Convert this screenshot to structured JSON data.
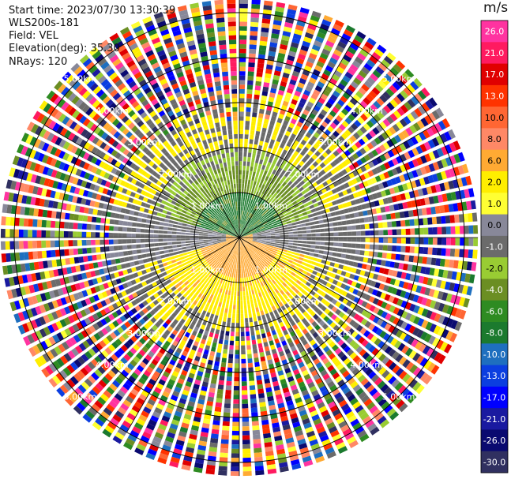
{
  "header": {
    "start_time": "Start time: 2023/07/30 13:30:39",
    "station": "WLS200s-181",
    "field": "Field: VEL",
    "elevation": "Elevation(deg): 35.30",
    "nrays": "NRays: 120"
  },
  "chart_data": {
    "type": "heatmap",
    "subtype": "ppi-polar",
    "field": "VEL",
    "units": "m/s",
    "n_rays": 120,
    "range_rings_km": [
      1,
      2,
      3,
      4,
      5
    ],
    "range_labels": [
      "1.00km",
      "2.00km",
      "3.00km",
      "4.00km",
      "5.00km"
    ],
    "max_range_km": 5.3,
    "colorbar": {
      "title": "m/s",
      "labels": [
        "26.0",
        "21.0",
        "17.0",
        "13.0",
        "10.0",
        "8.0",
        "6.0",
        "2.0",
        "1.0",
        "0.0",
        "-1.0",
        "-2.0",
        "-4.0",
        "-6.0",
        "-8.0",
        "-10.0",
        "-13.0",
        "-17.0",
        "-21.0",
        "-26.0",
        "-30.0"
      ],
      "colors": [
        "#ff33a0",
        "#ff1a60",
        "#e00000",
        "#ff3300",
        "#ff6633",
        "#ff8866",
        "#ffaa33",
        "#ffee00",
        "#ffff33",
        "#888899",
        "#6b6b6b",
        "#99cc33",
        "#6b8e23",
        "#2e8b22",
        "#1b7a2e",
        "#1e6fbf",
        "#0b3ee0",
        "#0000ff",
        "#1a1aa0",
        "#0a0a70",
        "#303060"
      ]
    },
    "field_pattern": {
      "near_north": "green (-4 to -8 m/s)",
      "mid_north": "olive / yellow-green (-2 to -4 m/s)",
      "near_south": "orange (6 m/s)",
      "mid_south": "yellow (2 m/s)",
      "transition": "gray (0 m/s)",
      "far_range": "noisy multicolor"
    }
  }
}
